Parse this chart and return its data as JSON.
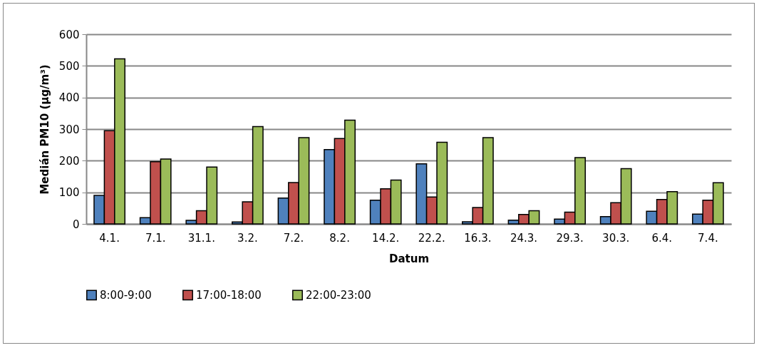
{
  "chart_data": {
    "type": "bar",
    "xlabel": "Datum",
    "ylabel": "Medián PM10 (µg/m³)",
    "categories": [
      "4.1.",
      "7.1.",
      "31.1.",
      "3.2.",
      "7.2.",
      "8.2.",
      "14.2.",
      "22.2.",
      "16.3.",
      "24.3.",
      "29.3.",
      "30.3.",
      "6.4.",
      "7.4."
    ],
    "series": [
      {
        "name": "8:00-9:00",
        "color": "#4f81bd",
        "values": [
          90,
          20,
          11,
          6,
          82,
          235,
          75,
          190,
          7,
          12,
          15,
          23,
          40,
          31
        ]
      },
      {
        "name": "17:00-18:00",
        "color": "#c0504d",
        "values": [
          295,
          197,
          42,
          70,
          131,
          270,
          111,
          85,
          52,
          30,
          37,
          67,
          77,
          75
        ]
      },
      {
        "name": "22:00-23:00",
        "color": "#9bbb59",
        "values": [
          522,
          205,
          180,
          308,
          273,
          328,
          139,
          258,
          273,
          42,
          210,
          175,
          102,
          130
        ]
      }
    ],
    "ylim": [
      0,
      600
    ],
    "yticks": [
      0,
      100,
      200,
      300,
      400,
      500,
      600
    ],
    "grid": "y",
    "legend": "bottom"
  }
}
